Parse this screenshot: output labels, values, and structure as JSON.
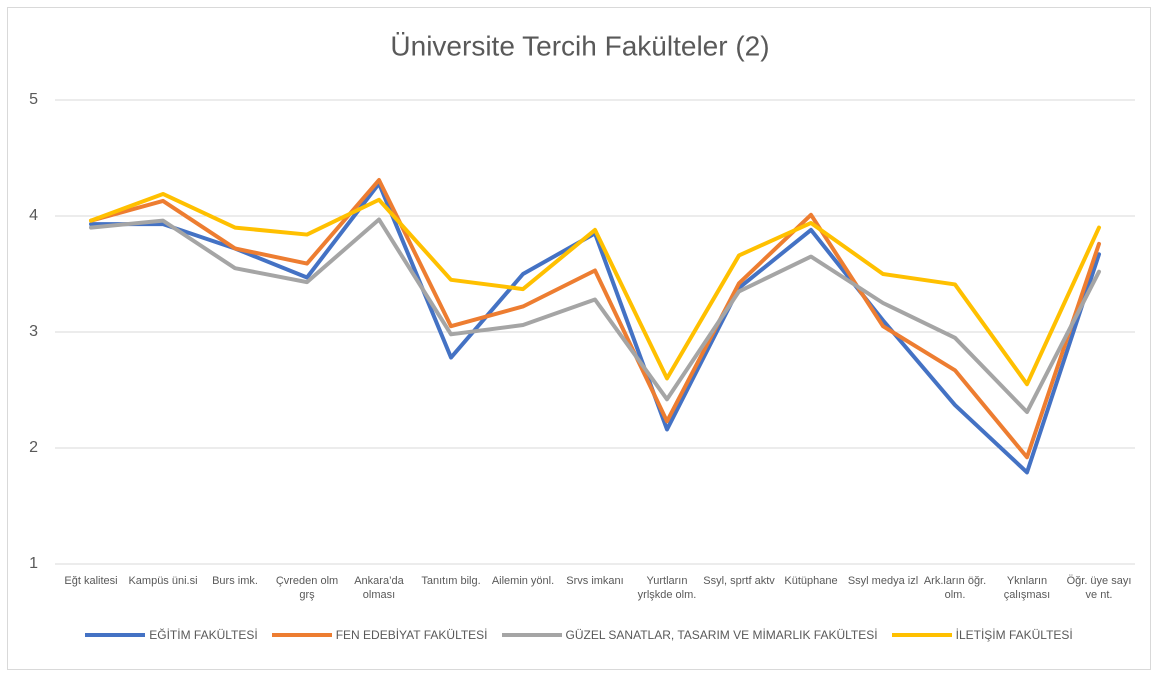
{
  "chart_data": {
    "type": "line",
    "title": "Üniversite Tercih Fakülteler (2)",
    "categories": [
      "Eğt kalitesi",
      "Kampüs üni.si",
      "Burs imk.",
      "Çvreden olm grş",
      "Ankara’da olması",
      "Tanıtım bilg.",
      "Ailemin yönl.",
      "Srvs imkanı",
      "Yurtların yrlşkde olm.",
      "Ssyl, sprtf aktv",
      "Kütüphane",
      "Ssyl medya izl",
      "Ark.ların öğr. olm.",
      "Yknların çalışması",
      "Öğr. üye sayı ve nt."
    ],
    "series": [
      {
        "name": "EĞİTİM FAKÜLTESİ",
        "color": "#4472c4",
        "values": [
          3.93,
          3.93,
          3.72,
          3.47,
          4.28,
          2.78,
          3.5,
          3.85,
          2.16,
          3.38,
          3.88,
          3.1,
          2.37,
          1.79,
          3.67
        ]
      },
      {
        "name": "FEN EDEBİYAT FAKÜLTESİ",
        "color": "#ed7d31",
        "values": [
          3.96,
          4.13,
          3.72,
          3.59,
          4.31,
          3.05,
          3.22,
          3.53,
          2.23,
          3.42,
          4.01,
          3.05,
          2.67,
          1.92,
          3.76
        ]
      },
      {
        "name": "GÜZEL SANATLAR, TASARIM VE MİMARLIK FAKÜLTESİ",
        "color": "#a5a5a5",
        "values": [
          3.9,
          3.96,
          3.55,
          3.43,
          3.97,
          2.98,
          3.06,
          3.28,
          2.42,
          3.35,
          3.65,
          3.25,
          2.95,
          2.31,
          3.52
        ]
      },
      {
        "name": "İLETİŞİM FAKÜLTESİ",
        "color": "#ffc000",
        "values": [
          3.96,
          4.19,
          3.9,
          3.84,
          4.14,
          3.45,
          3.37,
          3.88,
          2.6,
          3.66,
          3.94,
          3.5,
          3.41,
          2.55,
          3.9
        ]
      }
    ],
    "ylim": [
      1,
      5
    ],
    "yticks": [
      1,
      2,
      3,
      4,
      5
    ],
    "grid": true,
    "legend": "bottom"
  }
}
